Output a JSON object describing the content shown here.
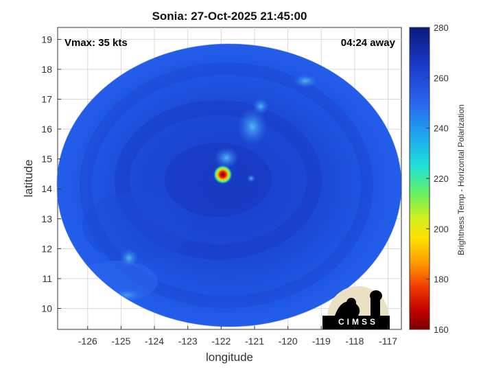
{
  "map": {
    "title": "Sonia: 27-Oct-2025 21:45:00",
    "vmax_label": "Vmax: 35 kts",
    "away_label": "04:24 away",
    "xlabel": "longitude",
    "ylabel": "latitude",
    "x_ticks": [
      "-126",
      "-125",
      "-124",
      "-123",
      "-122",
      "-121",
      "-120",
      "-119",
      "-118",
      "-117"
    ],
    "y_ticks": [
      "19",
      "18",
      "17",
      "16",
      "15",
      "14",
      "13",
      "12",
      "11",
      "10"
    ],
    "xlim": [
      -126.9,
      -116.6
    ],
    "ylim": [
      9.3,
      19.4
    ],
    "storm_center": {
      "lon": -121.95,
      "lat": 14.48
    }
  },
  "colorbar": {
    "label": "Brightness Temp - Horizontal Polarization",
    "ticks": [
      "280",
      "260",
      "240",
      "220",
      "200",
      "180",
      "160"
    ],
    "range": [
      160,
      280
    ]
  },
  "logo": {
    "text": "CIMSS"
  },
  "colors": {
    "background_blue": "#1e4fe0",
    "deep_blue": "#1433b8",
    "core_red": "#e01a10"
  }
}
